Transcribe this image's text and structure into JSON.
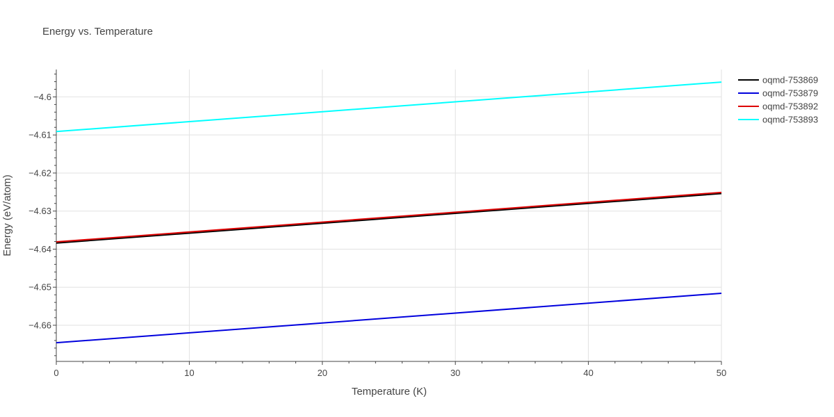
{
  "chart_data": {
    "type": "line",
    "title": "Energy vs. Temperature",
    "xlabel": "Temperature (K)",
    "ylabel": "Energy (eV/atom)",
    "xlim": [
      0,
      50
    ],
    "ylim": [
      -4.6695,
      -4.5928
    ],
    "x_ticks": [
      0,
      10,
      20,
      30,
      40,
      50
    ],
    "x_tick_labels": [
      "0",
      "10",
      "20",
      "30",
      "40",
      "50"
    ],
    "y_ticks": [
      -4.66,
      -4.65,
      -4.64,
      -4.63,
      -4.62,
      -4.61,
      -4.6
    ],
    "y_tick_labels": [
      "−4.66",
      "−4.65",
      "−4.64",
      "−4.63",
      "−4.62",
      "−4.61",
      "−4.6"
    ],
    "grid": true,
    "legend_position": "top-right",
    "series": [
      {
        "name": "oqmd-753869",
        "color": "#000000",
        "x": [
          0,
          50
        ],
        "y": [
          -4.6384,
          -4.6254
        ]
      },
      {
        "name": "oqmd-753879",
        "color": "#0000dd",
        "x": [
          0,
          50
        ],
        "y": [
          -4.6646,
          -4.6516
        ]
      },
      {
        "name": "oqmd-753892",
        "color": "#dd0000",
        "x": [
          0,
          50
        ],
        "y": [
          -4.6381,
          -4.6251
        ]
      },
      {
        "name": "oqmd-753893",
        "color": "#00ffff",
        "x": [
          0,
          50
        ],
        "y": [
          -4.6091,
          -4.5961
        ]
      }
    ]
  }
}
